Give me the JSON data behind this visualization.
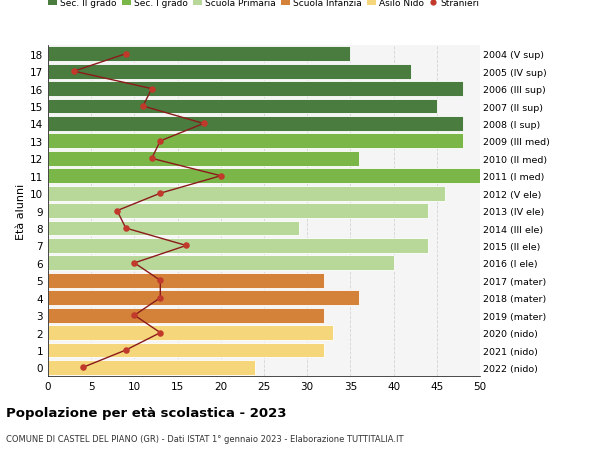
{
  "ages": [
    18,
    17,
    16,
    15,
    14,
    13,
    12,
    11,
    10,
    9,
    8,
    7,
    6,
    5,
    4,
    3,
    2,
    1,
    0
  ],
  "right_labels": [
    "2004 (V sup)",
    "2005 (IV sup)",
    "2006 (III sup)",
    "2007 (II sup)",
    "2008 (I sup)",
    "2009 (III med)",
    "2010 (II med)",
    "2011 (I med)",
    "2012 (V ele)",
    "2013 (IV ele)",
    "2014 (III ele)",
    "2015 (II ele)",
    "2016 (I ele)",
    "2017 (mater)",
    "2018 (mater)",
    "2019 (mater)",
    "2020 (nido)",
    "2021 (nido)",
    "2022 (nido)"
  ],
  "bar_values": [
    35,
    42,
    48,
    45,
    48,
    48,
    36,
    50,
    46,
    44,
    29,
    44,
    40,
    32,
    36,
    32,
    33,
    32,
    24
  ],
  "bar_colors": [
    "#4a7c3f",
    "#4a7c3f",
    "#4a7c3f",
    "#4a7c3f",
    "#4a7c3f",
    "#7ab648",
    "#7ab648",
    "#7ab648",
    "#b8d89a",
    "#b8d89a",
    "#b8d89a",
    "#b8d89a",
    "#b8d89a",
    "#d4823a",
    "#d4823a",
    "#d4823a",
    "#f5d67a",
    "#f5d67a",
    "#f5d67a"
  ],
  "stranieri_values": [
    9,
    3,
    12,
    11,
    18,
    13,
    12,
    20,
    13,
    8,
    9,
    16,
    10,
    13,
    13,
    10,
    13,
    9,
    4
  ],
  "legend_labels": [
    "Sec. II grado",
    "Sec. I grado",
    "Scuola Primaria",
    "Scuola Infanzia",
    "Asilo Nido",
    "Stranieri"
  ],
  "legend_colors": [
    "#4a7c3f",
    "#7ab648",
    "#b8d89a",
    "#d4823a",
    "#f5d67a",
    "#c0392b"
  ],
  "title": "Popolazione per età scolastica - 2023",
  "subtitle": "COMUNE DI CASTEL DEL PIANO (GR) - Dati ISTAT 1° gennaio 2023 - Elaborazione TUTTITALIA.IT",
  "ylabel_left": "Età alunni",
  "xlim": [
    0,
    50
  ],
  "xticks": [
    0,
    5,
    10,
    15,
    20,
    25,
    30,
    35,
    40,
    45,
    50
  ],
  "stranieri_color": "#c0392b",
  "stranieri_line_color": "#8b1a1a",
  "bg_color": "#f5f5f5",
  "grid_color": "#cccccc"
}
